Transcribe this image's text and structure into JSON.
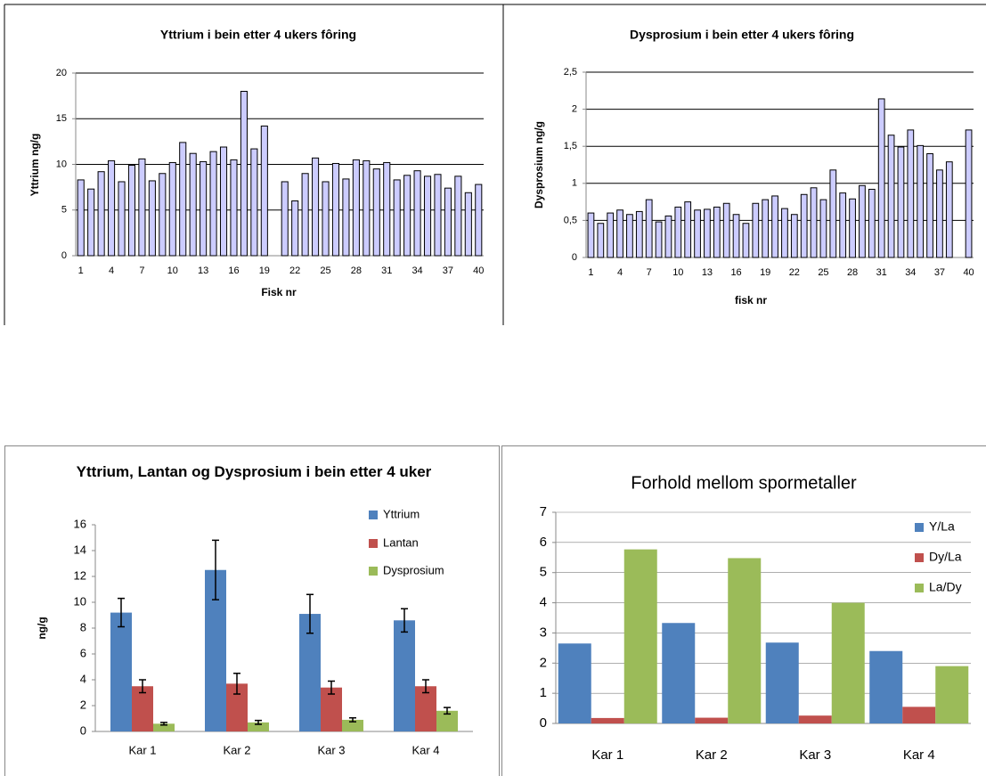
{
  "chart_data": [
    {
      "type": "bar",
      "title": "Yttrium i bein etter 4 ukers fôring",
      "y_label": "Yttrium ng/g",
      "x_label": "Fisk nr",
      "categories": [
        1,
        null,
        null,
        4,
        null,
        null,
        7,
        null,
        null,
        10,
        null,
        null,
        13,
        null,
        null,
        16,
        null,
        null,
        19,
        null,
        null,
        22,
        null,
        null,
        25,
        null,
        null,
        28,
        null,
        null,
        31,
        null,
        null,
        34,
        null,
        null,
        37,
        null,
        null,
        40
      ],
      "values": [
        8.3,
        7.3,
        9.2,
        10.4,
        8.1,
        9.9,
        10.6,
        8.2,
        9.0,
        10.2,
        12.4,
        11.2,
        10.3,
        11.4,
        11.9,
        10.5,
        18.0,
        11.7,
        14.2,
        null,
        8.1,
        6.0,
        9.0,
        10.7,
        8.1,
        10.1,
        8.4,
        10.5,
        10.4,
        9.5,
        10.2,
        8.3,
        8.8,
        9.3,
        8.7,
        8.9,
        7.4,
        8.7,
        6.9,
        7.8
      ],
      "color": "#ccccff",
      "ylim": [
        0,
        20
      ],
      "yticks": [
        0,
        5,
        10,
        15,
        20
      ],
      "grid": true
    },
    {
      "type": "bar",
      "title": "Dysprosium i bein etter 4 ukers fôring",
      "y_label": "Dysprosium ng/g",
      "x_label": "fisk nr",
      "categories": [
        1,
        null,
        null,
        4,
        null,
        null,
        7,
        null,
        null,
        10,
        null,
        null,
        13,
        null,
        null,
        16,
        null,
        null,
        19,
        null,
        null,
        22,
        null,
        null,
        25,
        null,
        null,
        28,
        null,
        null,
        31,
        null,
        null,
        34,
        null,
        null,
        37,
        null,
        null,
        40
      ],
      "values": [
        0.6,
        0.46,
        0.6,
        0.64,
        0.58,
        0.62,
        0.78,
        0.48,
        0.56,
        0.68,
        0.75,
        0.64,
        0.65,
        0.68,
        0.73,
        0.58,
        0.46,
        0.73,
        0.78,
        0.83,
        0.66,
        0.58,
        0.85,
        0.94,
        0.78,
        1.18,
        0.87,
        0.79,
        0.97,
        0.92,
        2.14,
        1.65,
        1.49,
        1.72,
        1.51,
        1.4,
        1.18,
        1.29,
        null,
        1.72
      ],
      "color": "#ccccff",
      "ylim": [
        0,
        2.5
      ],
      "yticks": [
        0,
        {
          "value": 0.5,
          "label": "0,5"
        },
        1,
        {
          "value": 1.5,
          "label": "1,5"
        },
        2,
        {
          "value": 2.5,
          "label": "2,5"
        }
      ],
      "grid": true
    },
    {
      "type": "bar",
      "title": "Yttrium, Lantan og Dysprosium i bein etter 4 uker",
      "y_label": "ng/g",
      "categories": [
        "Kar 1",
        "Kar 2",
        "Kar 3",
        "Kar 4"
      ],
      "series": [
        {
          "name": "Yttrium",
          "color": "#4f81bd",
          "values": [
            9.2,
            12.5,
            9.1,
            8.6
          ],
          "errors": [
            1.1,
            2.3,
            1.5,
            0.9
          ]
        },
        {
          "name": "Lantan",
          "color": "#c0504d",
          "values": [
            3.5,
            3.7,
            3.4,
            3.5
          ],
          "errors": [
            0.5,
            0.8,
            0.5,
            0.5
          ]
        },
        {
          "name": "Dysprosium",
          "color": "#9bbb59",
          "values": [
            0.6,
            0.7,
            0.9,
            1.6
          ],
          "errors": [
            0.1,
            0.15,
            0.15,
            0.25
          ]
        }
      ],
      "ylim": [
        0,
        16
      ],
      "yticks": [
        0,
        2,
        4,
        6,
        8,
        10,
        12,
        14,
        16
      ],
      "grid": false,
      "legend": "right"
    },
    {
      "type": "bar",
      "title": "Forhold mellom spormetaller",
      "categories": [
        "Kar 1",
        "Kar 2",
        "Kar 3",
        "Kar 4"
      ],
      "series": [
        {
          "name": "Y/La",
          "color": "#4f81bd",
          "values": [
            2.65,
            3.33,
            2.68,
            2.4
          ]
        },
        {
          "name": "Dy/La",
          "color": "#c0504d",
          "values": [
            0.18,
            0.19,
            0.26,
            0.55
          ]
        },
        {
          "name": "La/Dy",
          "color": "#9bbb59",
          "values": [
            5.77,
            5.48,
            4.0,
            1.9
          ]
        }
      ],
      "ylim": [
        0,
        7
      ],
      "yticks": [
        0,
        1,
        2,
        3,
        4,
        5,
        6,
        7
      ],
      "grid": true,
      "legend": "right"
    }
  ]
}
